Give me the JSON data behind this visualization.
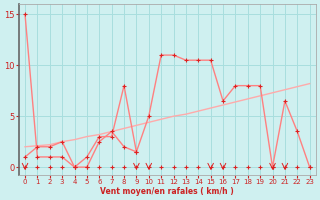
{
  "background_color": "#cff0f0",
  "grid_color": "#a8dede",
  "line1_color": "#ff8080",
  "line2_color": "#ffaaaa",
  "line3_color": "#ffaaaa",
  "marker_color": "#dd2222",
  "xlabel": "Vent moyen/en rafales ( km/h )",
  "xlim": [
    -0.5,
    23.5
  ],
  "ylim": [
    -0.8,
    16
  ],
  "yticks": [
    0,
    5,
    10,
    15
  ],
  "xticks": [
    0,
    1,
    2,
    3,
    4,
    5,
    6,
    7,
    8,
    9,
    10,
    11,
    12,
    13,
    14,
    15,
    16,
    17,
    18,
    19,
    20,
    21,
    22,
    23
  ],
  "line1_x": [
    0,
    1,
    2,
    3,
    4,
    5,
    6,
    7,
    8,
    9,
    10,
    11,
    12,
    13,
    14,
    15,
    16,
    17,
    18,
    19,
    20,
    21,
    22,
    23
  ],
  "line1_y": [
    15,
    1,
    1,
    1,
    0,
    1,
    3,
    3,
    8,
    1.5,
    5,
    11,
    11,
    10.5,
    10.5,
    10.5,
    6.5,
    8,
    8,
    8,
    0,
    6.5,
    3.5,
    0
  ],
  "line2_x": [
    0,
    1,
    2,
    3,
    4,
    5,
    6,
    7,
    8,
    9,
    10,
    11,
    12,
    13,
    14,
    15,
    16,
    17,
    18,
    19,
    20,
    21,
    22,
    23
  ],
  "line2_y": [
    2.0,
    2.1,
    2.2,
    2.5,
    2.7,
    3.0,
    3.2,
    3.5,
    3.8,
    4.1,
    4.4,
    4.7,
    5.0,
    5.2,
    5.5,
    5.8,
    6.1,
    6.4,
    6.7,
    7.0,
    7.3,
    7.6,
    7.9,
    8.2
  ],
  "line3_x": [
    0,
    1,
    2,
    3,
    4,
    5,
    6,
    7,
    8,
    9
  ],
  "line3_y": [
    1,
    2,
    2,
    2.5,
    0,
    0,
    2.5,
    3.5,
    2,
    1.5
  ],
  "dots_x": [
    0,
    1,
    2,
    3,
    4,
    5,
    6,
    7,
    8,
    9,
    10,
    11,
    12,
    13,
    14,
    15,
    16,
    17,
    18,
    19,
    20,
    21,
    22,
    23
  ],
  "dots_y": [
    0,
    0,
    0,
    0,
    0,
    0,
    0,
    0,
    0,
    0,
    0,
    0,
    0,
    0,
    0,
    0,
    0,
    0,
    0,
    0,
    0,
    0,
    0,
    0
  ],
  "arrows_x": [
    0,
    9,
    10,
    15,
    16,
    20,
    21
  ],
  "axis_label_color": "#cc2222",
  "tick_label_color": "#cc2222",
  "left_spine_color": "#666666"
}
